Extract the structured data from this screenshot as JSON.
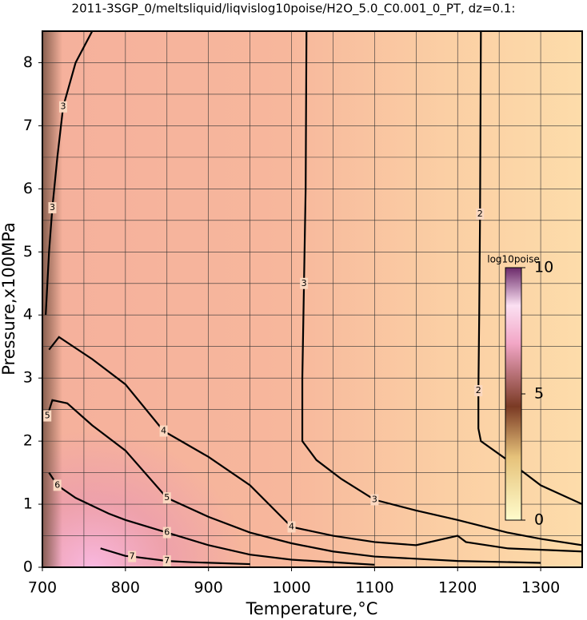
{
  "chart_data": {
    "type": "contour",
    "title": "2011-3SGP_0/meltsliquid/liqvislog10poise/H2O_5.0_C0.001_0_PT, dz=0.1:",
    "x_label": "Temperature,°C",
    "y_label": "Pressure,x100MPa",
    "xlim": [
      700,
      1350
    ],
    "ylim": [
      0,
      8.5
    ],
    "xticks": [
      700,
      800,
      900,
      1000,
      1100,
      1200,
      1300
    ],
    "yticks": [
      0,
      1,
      2,
      3,
      4,
      5,
      6,
      7,
      8
    ],
    "xgrid": [
      750,
      800,
      850,
      900,
      950,
      1000,
      1050,
      1100,
      1150,
      1200,
      1250,
      1300
    ],
    "ygrid": [
      0.5,
      1,
      1.5,
      2,
      2.5,
      3,
      3.5,
      4,
      4.5,
      5,
      5.5,
      6,
      6.5,
      7,
      7.5,
      8
    ],
    "grid": true,
    "colorbar": {
      "label": "log10poise",
      "lim": [
        0,
        10
      ],
      "ticks": [
        0,
        5,
        10
      ]
    },
    "contours": [
      {
        "level": 2,
        "T": [
          1228,
          1227,
          1226,
          1225,
          1225,
          1228,
          1260,
          1300,
          1350
        ],
        "P": [
          8.5,
          5.6,
          4,
          2.8,
          2.2,
          2.0,
          1.7,
          1.3,
          1.0
        ]
      },
      {
        "level": 3,
        "T": [
          1018,
          1017,
          1015,
          1013,
          1013,
          1030,
          1060,
          1100,
          1150,
          1200,
          1260,
          1300,
          1350
        ],
        "P": [
          8.5,
          6,
          4.5,
          3,
          2.0,
          1.7,
          1.4,
          1.07,
          0.9,
          0.75,
          0.55,
          0.45,
          0.35
        ]
      },
      {
        "level": 4,
        "T": [
          708,
          720,
          760,
          800,
          846,
          900,
          950,
          1000,
          1050,
          1100,
          1150,
          1200,
          1210,
          1260,
          1350
        ],
        "P": [
          3.45,
          3.65,
          3.3,
          2.9,
          2.16,
          1.75,
          1.3,
          0.64,
          0.5,
          0.4,
          0.35,
          0.5,
          0.4,
          0.3,
          0.25
        ]
      },
      {
        "level": 5,
        "T": [
          706,
          712,
          730,
          760,
          800,
          850,
          900,
          950,
          1000,
          1050,
          1100,
          1200,
          1300
        ],
        "P": [
          2.4,
          2.65,
          2.6,
          2.25,
          1.85,
          1.1,
          0.8,
          0.55,
          0.38,
          0.25,
          0.17,
          0.1,
          0.07
        ]
      },
      {
        "level": 6,
        "T": [
          708,
          718,
          740,
          780,
          800,
          850,
          900,
          950,
          1000,
          1100
        ],
        "P": [
          1.5,
          1.3,
          1.1,
          0.85,
          0.75,
          0.55,
          0.35,
          0.2,
          0.12,
          0.04
        ]
      },
      {
        "level": 7,
        "T": [
          770,
          800,
          808,
          850,
          880,
          950
        ],
        "P": [
          0.3,
          0.18,
          0.17,
          0.1,
          0.08,
          0.05
        ]
      },
      {
        "level": 3,
        "T": [
          760,
          740,
          725,
          718,
          712,
          708,
          704
        ],
        "P": [
          8.5,
          8,
          7.3,
          6.5,
          5.7,
          5,
          4
        ]
      }
    ]
  }
}
